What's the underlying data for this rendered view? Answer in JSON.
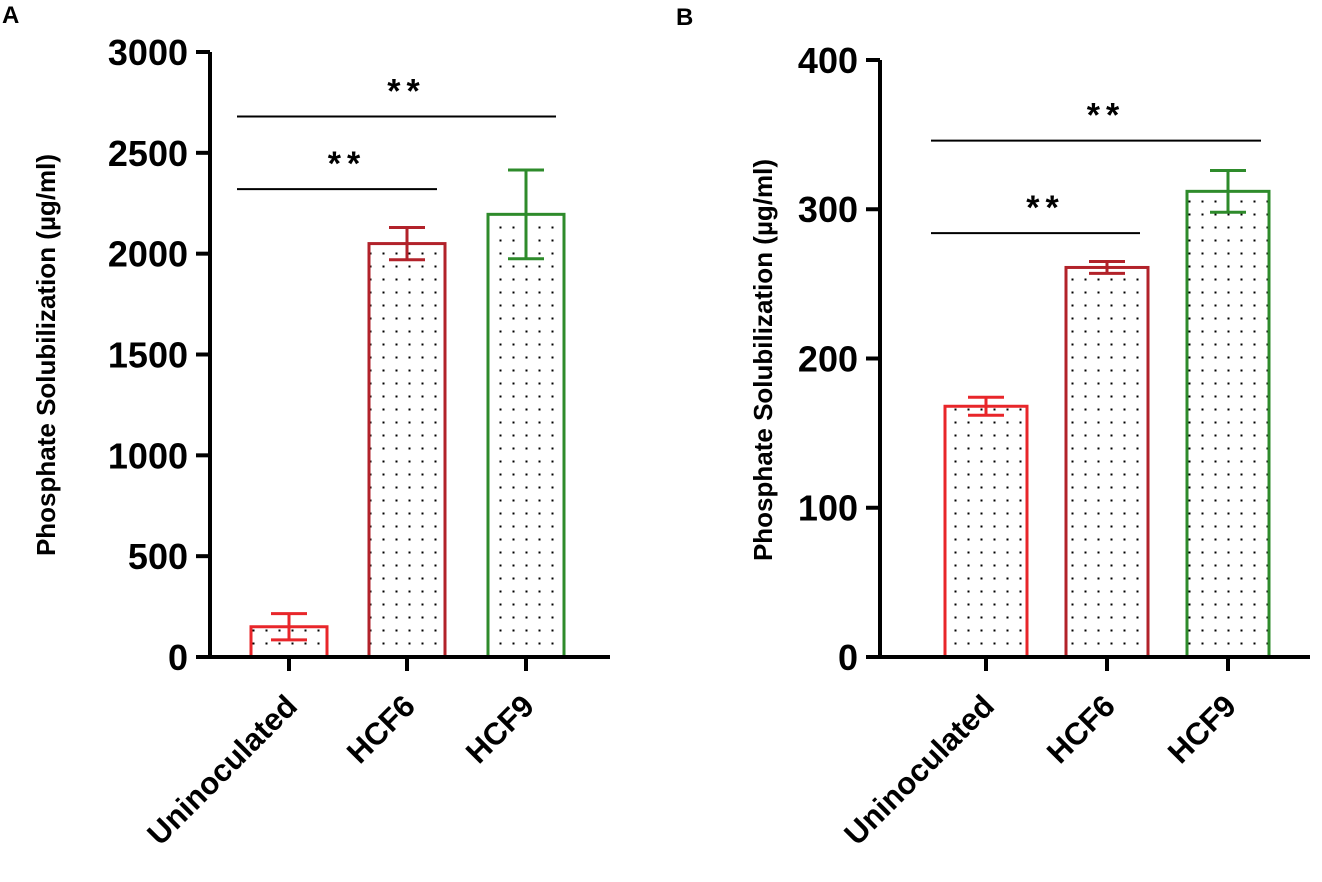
{
  "panels": {
    "a": {
      "letter": "A"
    },
    "b": {
      "letter": "B"
    }
  },
  "colors": {
    "uninoculated": "#e8262a",
    "hcf6": "#b2222a",
    "hcf9": "#2e8b2b",
    "axis": "#000000"
  },
  "chart_data": [
    {
      "type": "bar",
      "panel": "A",
      "title": "",
      "xlabel": "",
      "ylabel": "Phosphate Solubilization (µg/ml)",
      "ylim": [
        0,
        3000
      ],
      "yticks": [
        0,
        500,
        1000,
        1500,
        2000,
        2500,
        3000
      ],
      "categories": [
        "Uninoculated",
        "HCF6",
        "HCF9"
      ],
      "values": [
        150,
        2050,
        2195
      ],
      "errors": [
        65,
        80,
        220
      ],
      "series_colors": [
        "#e8262a",
        "#b2222a",
        "#2e8b2b"
      ],
      "significance": [
        {
          "from": "Uninoculated",
          "to": "HCF6",
          "label": "**",
          "y": 2320
        },
        {
          "from": "Uninoculated",
          "to": "HCF9",
          "label": "**",
          "y": 2680
        }
      ]
    },
    {
      "type": "bar",
      "panel": "B",
      "title": "",
      "xlabel": "",
      "ylabel": "Phosphate Solubilization (µg/ml)",
      "ylim": [
        0,
        400
      ],
      "yticks": [
        0,
        100,
        200,
        300,
        400
      ],
      "categories": [
        "Uninoculated",
        "HCF6",
        "HCF9"
      ],
      "values": [
        168,
        261,
        312
      ],
      "errors": [
        6,
        4,
        14
      ],
      "series_colors": [
        "#e8262a",
        "#b2222a",
        "#2e8b2b"
      ],
      "significance": [
        {
          "from": "Uninoculated",
          "to": "HCF6",
          "label": "**",
          "y": 284
        },
        {
          "from": "Uninoculated",
          "to": "HCF9",
          "label": "**",
          "y": 346
        }
      ]
    }
  ]
}
